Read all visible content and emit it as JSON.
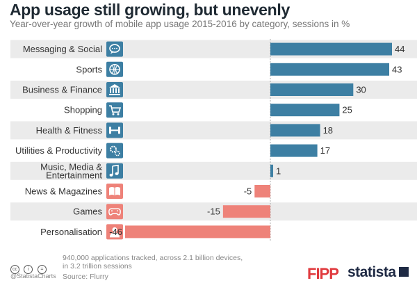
{
  "header": {
    "title": "App usage still growing, but unevenly",
    "subtitle": "Year-over-year growth of mobile app usage 2015-2016 by category, sessions in %"
  },
  "chart_data": {
    "type": "bar",
    "orientation": "horizontal",
    "categories": [
      "Messaging & Social",
      "Sports",
      "Business & Finance",
      "Shopping",
      "Health & Fitness",
      "Utilities & Productivity",
      "Music, Media & Entertainment",
      "News & Magazines",
      "Games",
      "Personalisation"
    ],
    "category_lines": [
      [
        "Messaging & Social"
      ],
      [
        "Sports"
      ],
      [
        "Business & Finance"
      ],
      [
        "Shopping"
      ],
      [
        "Health & Fitness"
      ],
      [
        "Utilities & Productivity"
      ],
      [
        "Music, Media &",
        "Entertainment"
      ],
      [
        "News & Magazines"
      ],
      [
        "Games"
      ],
      [
        "Personalisation"
      ]
    ],
    "icons": [
      "speech-bubble-icon",
      "basketball-icon",
      "bank-icon",
      "shopping-cart-icon",
      "dumbbell-icon",
      "gears-icon",
      "music-note-icon",
      "open-book-icon",
      "gamepad-icon",
      "person-icon"
    ],
    "values": [
      44,
      43,
      30,
      25,
      18,
      17,
      1,
      -5,
      -15,
      -46
    ],
    "xlim": [
      -46,
      44
    ],
    "colors": {
      "positive": "#3d7fa3",
      "negative": "#ee8279",
      "band": "#ebebeb"
    }
  },
  "footer": {
    "note_lines": [
      "940,000 applications tracked, across 2.1 billion devices,",
      "in 3.2 trillion sessions"
    ],
    "source": "Source: Flurry",
    "handle": "@StatistaCharts",
    "cc_icons": [
      "cc",
      "i",
      "="
    ]
  },
  "logos": {
    "fipp": "FIPP",
    "statista": "statista"
  }
}
